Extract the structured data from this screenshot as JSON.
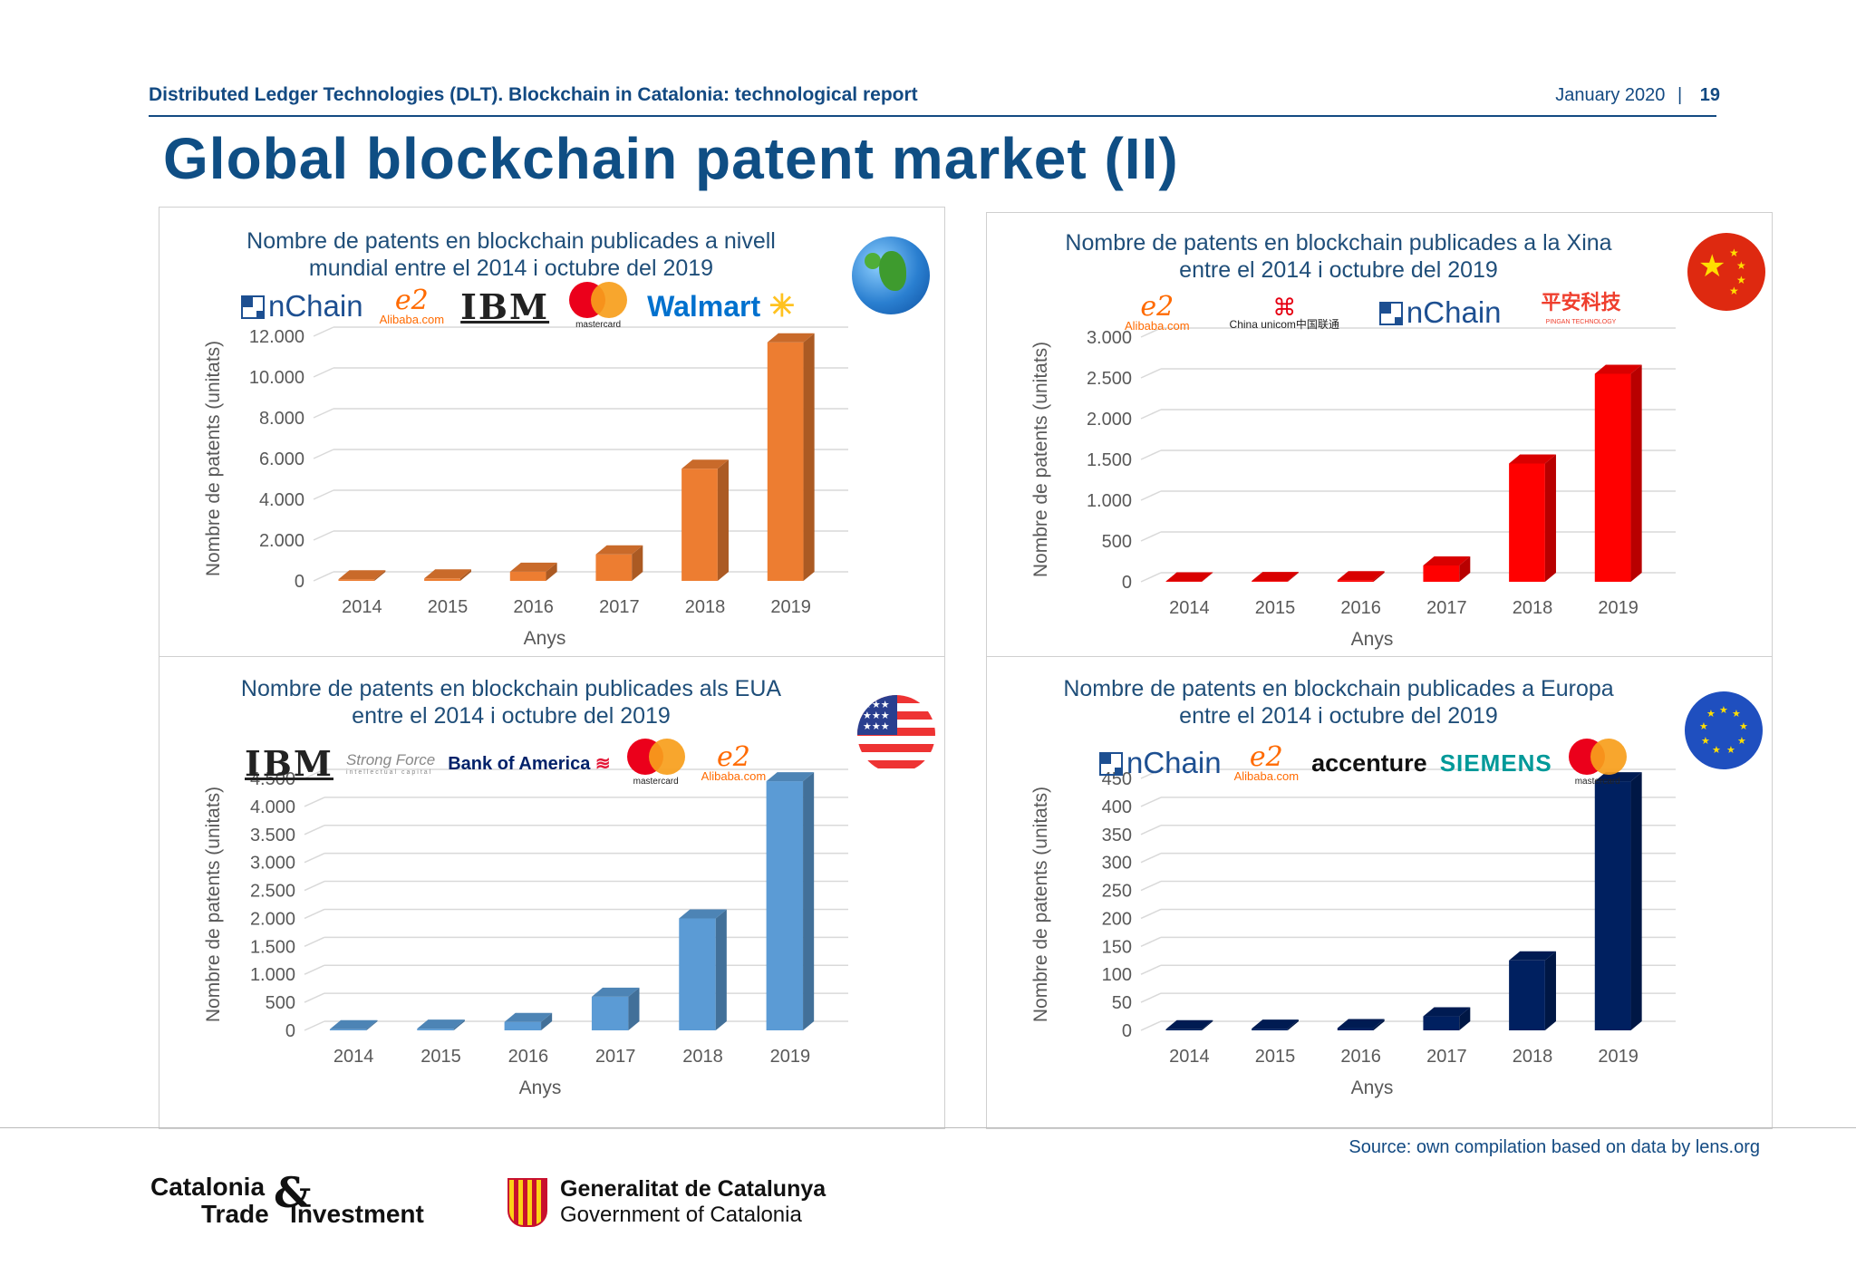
{
  "header": {
    "report_title": "Distributed Ledger Technologies (DLT). Blockchain in Catalonia: technological report",
    "date": "January 2020",
    "separator": "|",
    "page_number": "19"
  },
  "page_title": "Global blockchain patent market (II)",
  "source": "Source: own compilation based on data by lens.org",
  "footer": {
    "cti_line1": "Catalonia",
    "cti_amp": "&",
    "cti_line2": "Trade   Investment",
    "gen_line1": "Generalitat de Catalunya",
    "gen_line2": "Government of Catalonia"
  },
  "logos": {
    "nchain": "nChain",
    "alibaba": "Alibaba.com",
    "ibm": "IBM",
    "mastercard": "mastercard",
    "walmart": "Walmart",
    "china_unicom": "China unicom中国联通",
    "pingan": "平安科技",
    "pingan_sub": "PINGAN TECHNOLOGY",
    "strong_force": "Strong Force",
    "strong_force_sub": "intellectual capital",
    "bank_of_america": "Bank of America",
    "accenture": "accenture",
    "siemens": "SIEMENS"
  },
  "chart_data": [
    {
      "type": "bar",
      "title": "Nombre de patents en blockchain publicades a nivell mundial entre el 2014 i octubre del 2019",
      "title_lines": [
        "Nombre de patents en blockchain publicades a nivell",
        "mundial entre el 2014 i octubre del 2019"
      ],
      "xlabel": "Anys",
      "ylabel": "Nombre de patents (unitats)",
      "categories": [
        "2014",
        "2015",
        "2016",
        "2017",
        "2018",
        "2019"
      ],
      "values": [
        80,
        120,
        450,
        1300,
        5500,
        11700
      ],
      "ylim": [
        0,
        12000
      ],
      "yticks": [
        0,
        2000,
        4000,
        6000,
        8000,
        10000,
        12000
      ],
      "ytick_labels": [
        "0",
        "2.000",
        "4.000",
        "6.000",
        "8.000",
        "10.000",
        "12.000"
      ],
      "color": "#ed7d31",
      "grid": true
    },
    {
      "type": "bar",
      "title": "Nombre de patents en blockchain publicades a la Xina entre el 2014 i octubre del 2019",
      "title_lines": [
        "Nombre de patents en blockchain publicades a la Xina",
        "entre el 2014 i octubre del 2019"
      ],
      "xlabel": "Anys",
      "ylabel": "Nombre de patents (unitats)",
      "categories": [
        "2014",
        "2015",
        "2016",
        "2017",
        "2018",
        "2019"
      ],
      "values": [
        5,
        10,
        20,
        200,
        1450,
        2550
      ],
      "ylim": [
        0,
        3000
      ],
      "yticks": [
        0,
        500,
        1000,
        1500,
        2000,
        2500,
        3000
      ],
      "ytick_labels": [
        "0",
        "500",
        "1.000",
        "1.500",
        "2.000",
        "2.500",
        "3.000"
      ],
      "color": "#ff0000",
      "grid": true
    },
    {
      "type": "bar",
      "title": "Nombre de patents en blockchain publicades als EUA entre el 2014 i octubre del 2019",
      "title_lines": [
        "Nombre de patents en blockchain publicades als EUA",
        "entre el 2014 i octubre del 2019"
      ],
      "xlabel": "Anys",
      "ylabel": "Nombre de patents (unitats)",
      "categories": [
        "2014",
        "2015",
        "2016",
        "2017",
        "2018",
        "2019"
      ],
      "values": [
        20,
        30,
        150,
        600,
        2000,
        4450
      ],
      "ylim": [
        0,
        4500
      ],
      "yticks": [
        0,
        500,
        1000,
        1500,
        2000,
        2500,
        3000,
        3500,
        4000,
        4500
      ],
      "ytick_labels": [
        "0",
        "500",
        "1.000",
        "1.500",
        "2.000",
        "2.500",
        "3.000",
        "3.500",
        "4.000",
        "4.500"
      ],
      "color": "#5b9bd5",
      "grid": true
    },
    {
      "type": "bar",
      "title": "Nombre de patents en blockchain publicades a Europa entre el 2014 i octubre del 2019",
      "title_lines": [
        "Nombre de patents en blockchain publicades a Europa",
        "entre el 2014 i octubre del 2019"
      ],
      "xlabel": "Anys",
      "ylabel": "Nombre de patents (unitats)",
      "categories": [
        "2014",
        "2015",
        "2016",
        "2017",
        "2018",
        "2019"
      ],
      "values": [
        2,
        3,
        4,
        25,
        125,
        445
      ],
      "ylim": [
        0,
        450
      ],
      "yticks": [
        0,
        50,
        100,
        150,
        200,
        250,
        300,
        350,
        400,
        450
      ],
      "ytick_labels": [
        "0",
        "50",
        "100",
        "150",
        "200",
        "250",
        "300",
        "350",
        "400",
        "450"
      ],
      "color": "#002060",
      "grid": true
    }
  ]
}
